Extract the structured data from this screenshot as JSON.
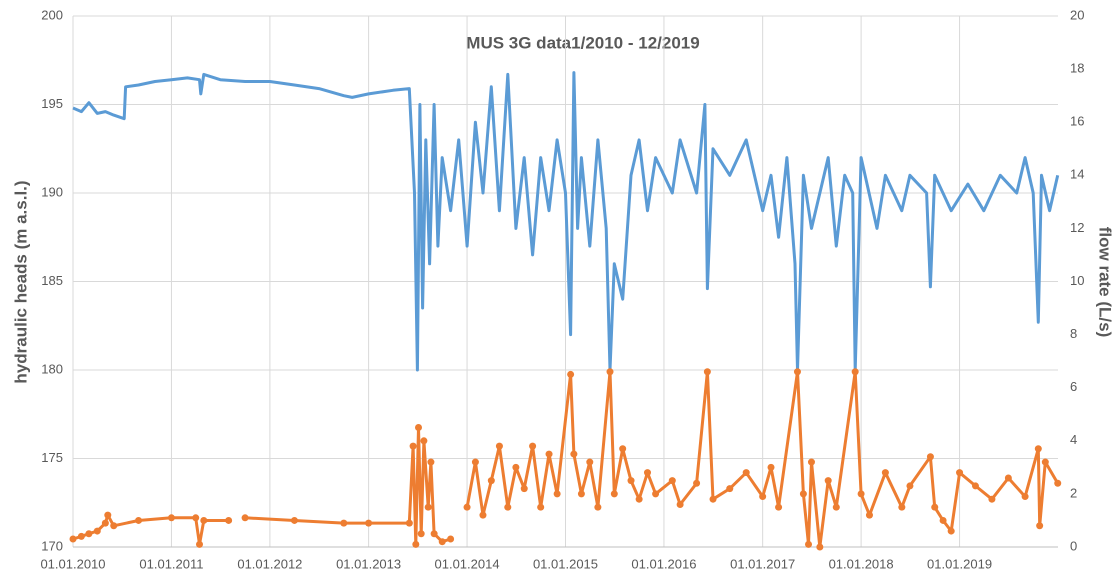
{
  "chart_data": {
    "type": "line",
    "title": "MUS 3G data1/2010 - 12/2019",
    "y_label": "hydraulic heads (m a.s.l.)",
    "y2_label": "flow rate (L/s)",
    "xlim": [
      "2010-01-01",
      "2020-01-01"
    ],
    "xticks": [
      {
        "value": "2010-01-01",
        "label": "01.01.2010"
      },
      {
        "value": "2011-01-01",
        "label": "01.01.2011"
      },
      {
        "value": "2012-01-01",
        "label": "01.01.2012"
      },
      {
        "value": "2013-01-01",
        "label": "01.01.2013"
      },
      {
        "value": "2014-01-01",
        "label": "01.01.2014"
      },
      {
        "value": "2015-01-01",
        "label": "01.01.2015"
      },
      {
        "value": "2016-01-01",
        "label": "01.01.2016"
      },
      {
        "value": "2017-01-01",
        "label": "01.01.2017"
      },
      {
        "value": "2018-01-01",
        "label": "01.01.2018"
      },
      {
        "value": "2019-01-01",
        "label": "01.01.2019"
      }
    ],
    "ylim": [
      170,
      200
    ],
    "yticks": [
      170,
      175,
      180,
      185,
      190,
      195,
      200
    ],
    "y2lim": [
      0,
      20
    ],
    "y2ticks": [
      0,
      2,
      4,
      6,
      8,
      10,
      12,
      14,
      16,
      18,
      20
    ],
    "grid": true,
    "series": [
      {
        "color": "#5b9bd5",
        "markers": false,
        "x": [
          "2010-01-01",
          "2010-02-01",
          "2010-03-01",
          "2010-04-01",
          "2010-05-01",
          "2010-06-01",
          "2010-07-10",
          "2010-07-15",
          "2010-09-01",
          "2010-11-01",
          "2011-01-01",
          "2011-03-01",
          "2011-04-15",
          "2011-04-20",
          "2011-05-01",
          "2011-07-01",
          "2011-10-01",
          "2012-01-01",
          "2012-04-01",
          "2012-07-01",
          "2012-10-01",
          "2012-11-01",
          "2013-01-01",
          "2013-04-01",
          "2013-06-01",
          "2013-06-20",
          "2013-07-01",
          "2013-07-10",
          "2013-07-20",
          "2013-08-01",
          "2013-08-15",
          "2013-09-01",
          "2013-09-15",
          "2013-10-01",
          "2013-11-01",
          "2013-12-01",
          "2014-01-01",
          "2014-02-01",
          "2014-03-01",
          "2014-04-01",
          "2014-05-01",
          "2014-06-01",
          "2014-07-01",
          "2014-08-01",
          "2014-09-01",
          "2014-10-01",
          "2014-11-01",
          "2014-12-01",
          "2015-01-01",
          "2015-01-20",
          "2015-02-01",
          "2015-02-15",
          "2015-03-01",
          "2015-04-01",
          "2015-05-01",
          "2015-06-01",
          "2015-06-15",
          "2015-07-01",
          "2015-08-01",
          "2015-09-01",
          "2015-10-01",
          "2015-11-01",
          "2015-12-01",
          "2016-02-01",
          "2016-03-01",
          "2016-05-01",
          "2016-06-01",
          "2016-06-10",
          "2016-07-01",
          "2016-09-01",
          "2016-11-01",
          "2017-01-01",
          "2017-02-01",
          "2017-03-01",
          "2017-04-01",
          "2017-05-01",
          "2017-05-10",
          "2017-06-01",
          "2017-07-01",
          "2017-09-01",
          "2017-10-01",
          "2017-11-01",
          "2017-12-01",
          "2017-12-10",
          "2018-01-01",
          "2018-03-01",
          "2018-04-01",
          "2018-06-01",
          "2018-07-01",
          "2018-09-01",
          "2018-09-15",
          "2018-10-01",
          "2018-12-01",
          "2019-02-01",
          "2019-04-01",
          "2019-06-01",
          "2019-08-01",
          "2019-09-01",
          "2019-10-01",
          "2019-10-20",
          "2019-11-01",
          "2019-12-01",
          "2019-12-31"
        ],
        "values": [
          194.8,
          194.6,
          195.1,
          194.5,
          194.6,
          194.4,
          194.2,
          196.0,
          196.1,
          196.3,
          196.4,
          196.5,
          196.4,
          195.6,
          196.7,
          196.4,
          196.3,
          196.3,
          196.1,
          195.9,
          195.5,
          195.4,
          195.6,
          195.8,
          195.9,
          190,
          180,
          195,
          183.5,
          193,
          186,
          195,
          187,
          192,
          189,
          193,
          187,
          194,
          190,
          196,
          189,
          196.7,
          188,
          192,
          186.5,
          192,
          189,
          193,
          190,
          182,
          196.8,
          188,
          192,
          187,
          193,
          188,
          180,
          186,
          184,
          191,
          193,
          189,
          192,
          190,
          193,
          190,
          195,
          184.6,
          192.5,
          191,
          193,
          189,
          191,
          187.5,
          192,
          186,
          180,
          191,
          188,
          192,
          187,
          191,
          190,
          180,
          192,
          188,
          191,
          189,
          191,
          190,
          184.7,
          191,
          189,
          190.5,
          189,
          191,
          190,
          192,
          190,
          182.7,
          191,
          189,
          191
        ]
      },
      {
        "color": "#ed7d31",
        "axis": "y2",
        "markers": true,
        "x": [
          "2010-01-01",
          "2010-02-01",
          "2010-03-01",
          "2010-04-01",
          "2010-05-01",
          "2010-05-10",
          "2010-06-01",
          "2010-09-01",
          "2011-01-01",
          "2011-04-01",
          "2011-04-15",
          "2011-05-01",
          "2011-08-01",
          "2011-09-01",
          "2011-10-01",
          "2012-04-01",
          "2012-10-01",
          "2013-01-01",
          "2013-06-01",
          "2013-06-15",
          "2013-06-25",
          "2013-07-05",
          "2013-07-15",
          "2013-07-25",
          "2013-08-10",
          "2013-08-20",
          "2013-09-01",
          "2013-10-01",
          "2013-11-01",
          "2013-11-15",
          "2014-01-01",
          "2014-02-01",
          "2014-03-01",
          "2014-04-01",
          "2014-05-01",
          "2014-06-01",
          "2014-07-01",
          "2014-08-01",
          "2014-09-01",
          "2014-10-01",
          "2014-11-01",
          "2014-12-01",
          "2015-01-20",
          "2015-02-01",
          "2015-03-01",
          "2015-04-01",
          "2015-05-01",
          "2015-06-15",
          "2015-07-01",
          "2015-08-01",
          "2015-09-01",
          "2015-10-01",
          "2015-11-01",
          "2015-12-01",
          "2016-02-01",
          "2016-03-01",
          "2016-05-01",
          "2016-06-10",
          "2016-07-01",
          "2016-09-01",
          "2016-11-01",
          "2017-01-01",
          "2017-02-01",
          "2017-03-01",
          "2017-05-10",
          "2017-06-01",
          "2017-06-20",
          "2017-07-01",
          "2017-08-01",
          "2017-09-01",
          "2017-10-01",
          "2017-12-10",
          "2018-01-01",
          "2018-02-01",
          "2018-04-01",
          "2018-06-01",
          "2018-07-01",
          "2018-09-15",
          "2018-10-01",
          "2018-11-01",
          "2018-12-01",
          "2019-01-01",
          "2019-03-01",
          "2019-05-01",
          "2019-07-01",
          "2019-09-01",
          "2019-10-20",
          "2019-10-25",
          "2019-11-15",
          "2019-12-31"
        ],
        "values": [
          0.3,
          0.4,
          0.5,
          0.6,
          0.9,
          1.2,
          0.8,
          1.0,
          1.1,
          1.1,
          0.1,
          1.0,
          1.0,
          null,
          1.1,
          1.0,
          0.9,
          0.9,
          0.9,
          3.8,
          0.1,
          4.5,
          0.5,
          4.0,
          1.5,
          3.2,
          0.5,
          0.2,
          0.3,
          null,
          1.5,
          3.2,
          1.2,
          2.5,
          3.8,
          1.5,
          3.0,
          2.2,
          3.8,
          1.5,
          3.5,
          2.0,
          6.5,
          3.5,
          2.0,
          3.2,
          1.5,
          6.6,
          2.0,
          3.7,
          2.5,
          1.8,
          2.8,
          2.0,
          2.5,
          1.6,
          2.4,
          6.6,
          1.8,
          2.2,
          2.8,
          1.9,
          3.0,
          1.5,
          6.6,
          2.0,
          0.1,
          3.2,
          0.0,
          2.5,
          1.5,
          6.6,
          2.0,
          1.2,
          2.8,
          1.5,
          2.3,
          3.4,
          1.5,
          1.0,
          0.6,
          2.8,
          2.3,
          1.8,
          2.6,
          1.9,
          3.7,
          0.8,
          3.2,
          2.4
        ]
      }
    ]
  }
}
